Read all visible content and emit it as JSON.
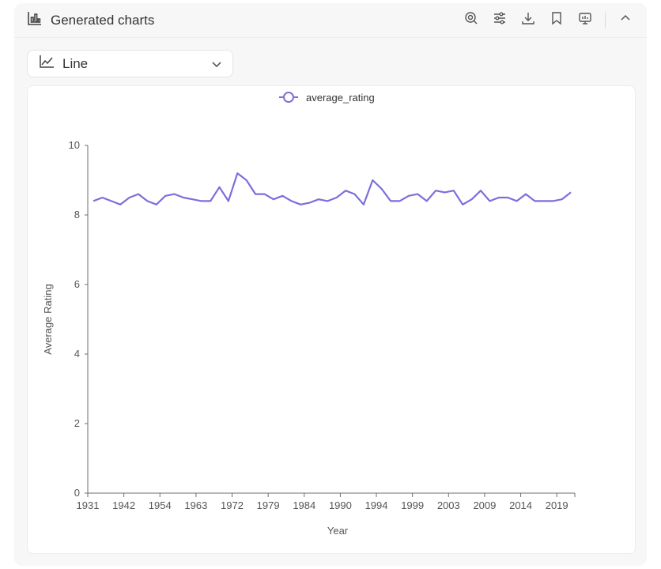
{
  "header": {
    "title": "Generated charts",
    "icons": [
      "chart-bar-icon",
      "settings-magic-icon",
      "sliders-icon",
      "download-icon",
      "bookmark-icon",
      "presentation-icon",
      "chevron-up-icon"
    ]
  },
  "selector": {
    "label": "Line",
    "icon": "line-chart-icon"
  },
  "colors": {
    "series": "#7b6fdb",
    "axis": "#6e6e6e",
    "text": "#555555"
  },
  "chart_data": {
    "type": "line",
    "xlabel": "Year",
    "ylabel": "Average Rating",
    "ylim": [
      0,
      10
    ],
    "yticks": [
      0,
      2,
      4,
      6,
      8,
      10
    ],
    "xtick_labels": [
      "1931",
      "1942",
      "1954",
      "1963",
      "1972",
      "1979",
      "1984",
      "1990",
      "1994",
      "1999",
      "2003",
      "2009",
      "2014",
      "2019"
    ],
    "legend": "top-center",
    "grid": false,
    "series": [
      {
        "name": "average_rating",
        "values": [
          8.4,
          8.5,
          8.4,
          8.3,
          8.5,
          8.6,
          8.4,
          8.3,
          8.55,
          8.6,
          8.5,
          8.45,
          8.4,
          8.4,
          8.8,
          8.4,
          9.2,
          9.0,
          8.6,
          8.6,
          8.45,
          8.55,
          8.4,
          8.3,
          8.35,
          8.45,
          8.4,
          8.5,
          8.7,
          8.6,
          8.3,
          9.0,
          8.75,
          8.4,
          8.4,
          8.55,
          8.6,
          8.4,
          8.7,
          8.65,
          8.7,
          8.3,
          8.45,
          8.7,
          8.4,
          8.5,
          8.5,
          8.4,
          8.6,
          8.4,
          8.4,
          8.4,
          8.45,
          8.65
        ]
      }
    ]
  }
}
